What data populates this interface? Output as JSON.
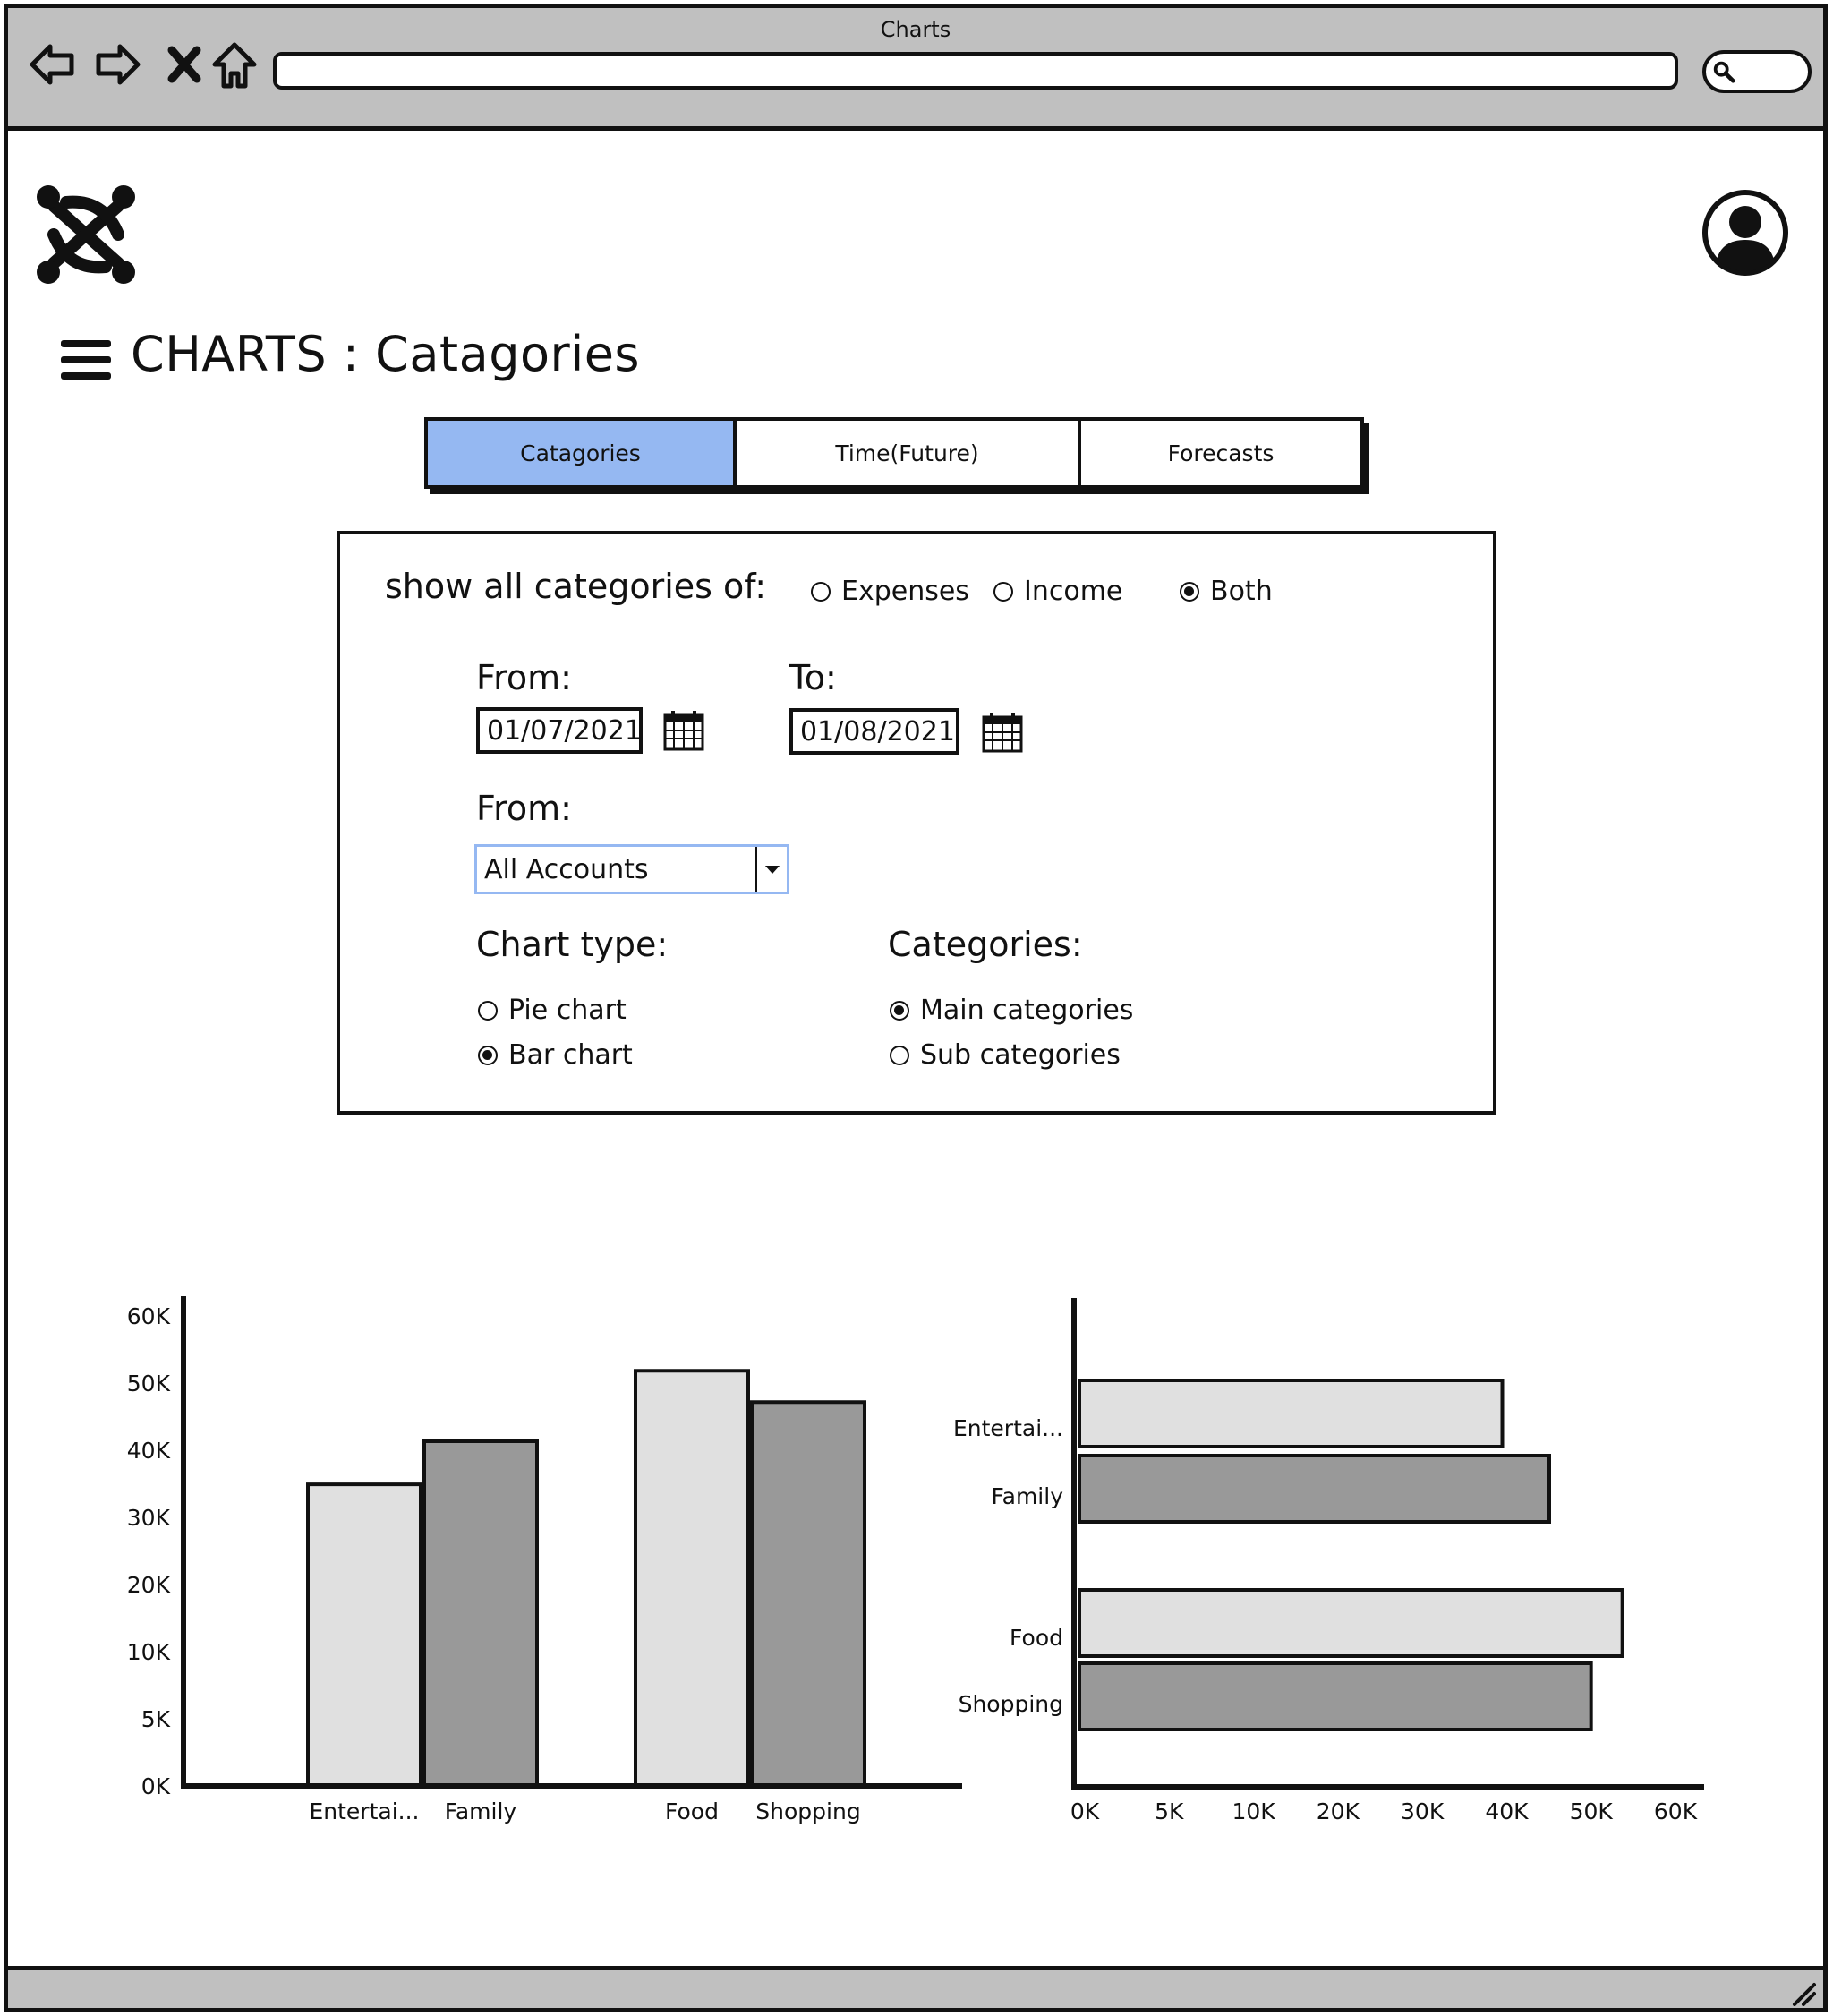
{
  "window": {
    "title": "Charts"
  },
  "page": {
    "title": "CHARTS : Catagories"
  },
  "tabs": [
    {
      "label": "Catagories",
      "active": true
    },
    {
      "label": "Time(Future)",
      "active": false
    },
    {
      "label": "Forecasts",
      "active": false
    }
  ],
  "filters": {
    "show_label": "show  all categories of:",
    "show_options": [
      {
        "label": "Expenses",
        "checked": false
      },
      {
        "label": "Income",
        "checked": false
      },
      {
        "label": "Both",
        "checked": true
      }
    ],
    "from_date_label": "From:",
    "from_date_value": "01/07/2021",
    "to_date_label": "To:",
    "to_date_value": "01/08/2021",
    "account_label": "From:",
    "account_value": "All Accounts",
    "chart_type_label": "Chart type:",
    "chart_type_options": [
      {
        "label": "Pie chart",
        "checked": false
      },
      {
        "label": "Bar chart",
        "checked": true
      }
    ],
    "categories_label": "Categories:",
    "categories_options": [
      {
        "label": "Main categories",
        "checked": true
      },
      {
        "label": "Sub categories",
        "checked": false
      }
    ]
  },
  "colors": {
    "tab_active": "#95b8f2",
    "bar_light": "#e0e0e0",
    "bar_dark": "#999999",
    "chrome": "#c0c0c0"
  },
  "chart_data": [
    {
      "type": "bar",
      "orientation": "vertical",
      "categories": [
        "Entertai...",
        "Family",
        "Food",
        "Shopping"
      ],
      "values": [
        38500,
        44000,
        53000,
        49000
      ],
      "y_ticks": [
        "0K",
        "5K",
        "10K",
        "20K",
        "30K",
        "40K",
        "50K",
        "60K"
      ],
      "grid": false
    },
    {
      "type": "bar",
      "orientation": "horizontal",
      "categories": [
        "Entertai...",
        "Family",
        "Food",
        "Shopping"
      ],
      "values": [
        40500,
        45000,
        52000,
        49000
      ],
      "x_ticks": [
        "0K",
        "5K",
        "10K",
        "20K",
        "30K",
        "40K",
        "50K",
        "60K"
      ],
      "grid": false
    }
  ]
}
